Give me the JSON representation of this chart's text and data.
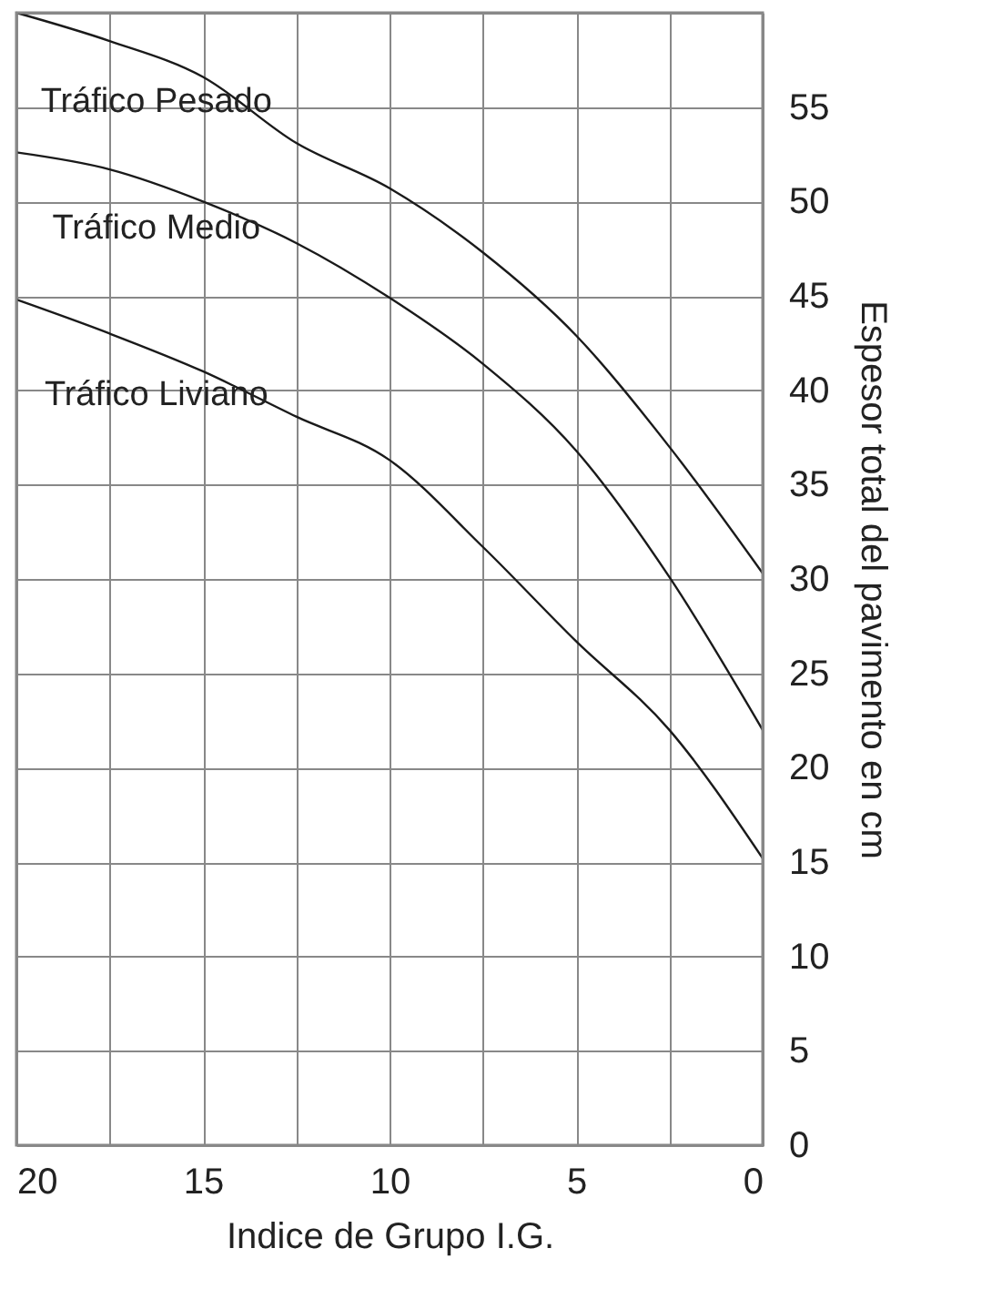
{
  "chart_data": {
    "type": "line",
    "xlabel": "Indice de Grupo I.G.",
    "ylabel": "Espesor total del pavimento en cm",
    "x": [
      20,
      17.5,
      15,
      12.5,
      10,
      7.5,
      5,
      2.5,
      0
    ],
    "series": [
      {
        "name": "Tráfico Pesado",
        "color": "#1a1a1a",
        "values": [
          60,
          58.5,
          56.6,
          53.1,
          50.7,
          47.3,
          42.9,
          37.0,
          30.3
        ]
      },
      {
        "name": "Tráfico Medio",
        "color": "#1a1a1a",
        "values": [
          52.6,
          51.7,
          50.0,
          47.8,
          44.9,
          41.4,
          36.8,
          30.1,
          22.0
        ]
      },
      {
        "name": "Tráfico Liviano",
        "color": "#1a1a1a",
        "values": [
          44.8,
          43.0,
          41.0,
          38.6,
          36.3,
          31.7,
          26.7,
          22.0,
          15.2
        ]
      }
    ],
    "xlim": [
      20,
      0
    ],
    "xticks": [
      20,
      {
        "value": 17.5,
        "label": null
      },
      15,
      {
        "value": 12.5,
        "label": null
      },
      10,
      {
        "value": 7.5,
        "label": null
      },
      5,
      {
        "value": 2.5,
        "label": null
      },
      0
    ],
    "ylim": [
      0,
      60
    ],
    "yticks": [
      0,
      5,
      10,
      15,
      20,
      25,
      30,
      35,
      40,
      45,
      50,
      55,
      {
        "value": 60,
        "label": null
      }
    ],
    "grid": true,
    "legend": false,
    "marker": "none",
    "line_style": "solid"
  }
}
